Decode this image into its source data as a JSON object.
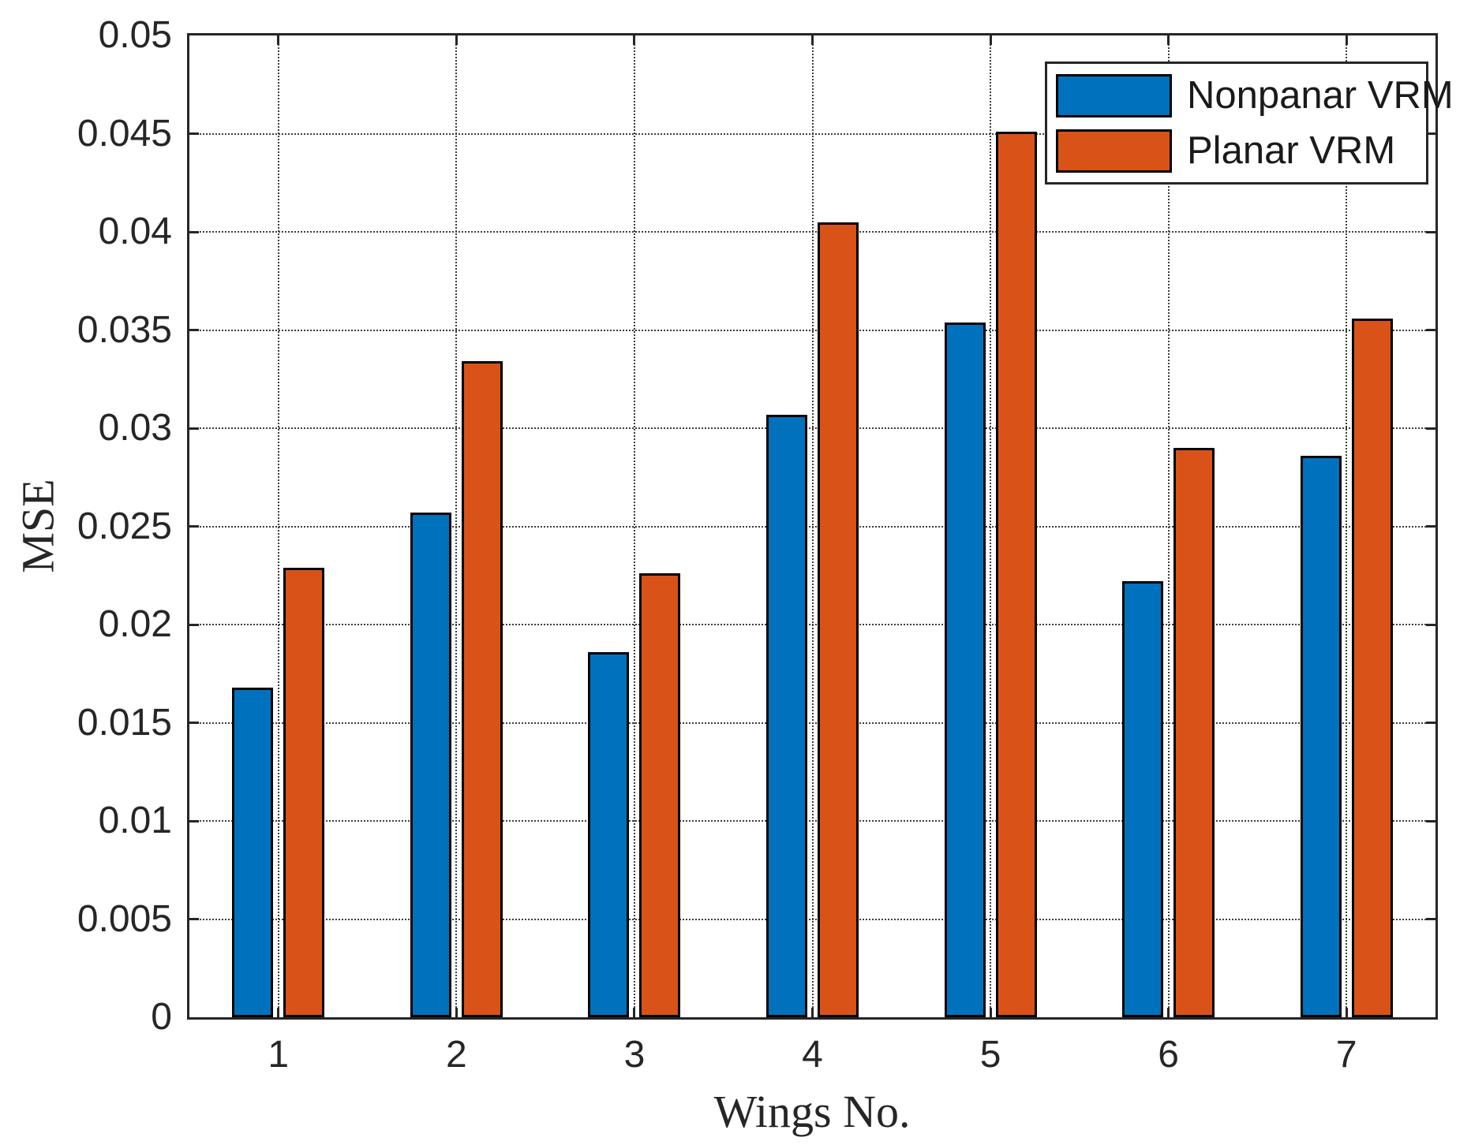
{
  "chart_data": {
    "type": "bar",
    "title": "",
    "xlabel": "Wings No.",
    "ylabel": "MSE",
    "categories": [
      "1",
      "2",
      "3",
      "4",
      "5",
      "6",
      "7"
    ],
    "series": [
      {
        "name": "Nonpanar VRM",
        "color": "#0072BD",
        "values": [
          0.0168,
          0.0257,
          0.0186,
          0.0307,
          0.0354,
          0.0222,
          0.0286
        ]
      },
      {
        "name": "Planar VRM",
        "color": "#D95319",
        "values": [
          0.0229,
          0.0334,
          0.0226,
          0.0405,
          0.0451,
          0.029,
          0.0356
        ]
      }
    ],
    "ylim": [
      0,
      0.05
    ],
    "yticks": [
      0,
      0.005,
      0.01,
      0.015,
      0.02,
      0.025,
      0.03,
      0.035,
      0.04,
      0.045,
      0.05
    ],
    "ytick_labels": [
      "0",
      "0.005",
      "0.01",
      "0.015",
      "0.02",
      "0.025",
      "0.03",
      "0.035",
      "0.04",
      "0.045",
      "0.05"
    ],
    "grid": true,
    "grid_style": "dotted",
    "legend_position": "top-right",
    "bar_edge_color": "#000000",
    "axis_color": "#262626"
  }
}
